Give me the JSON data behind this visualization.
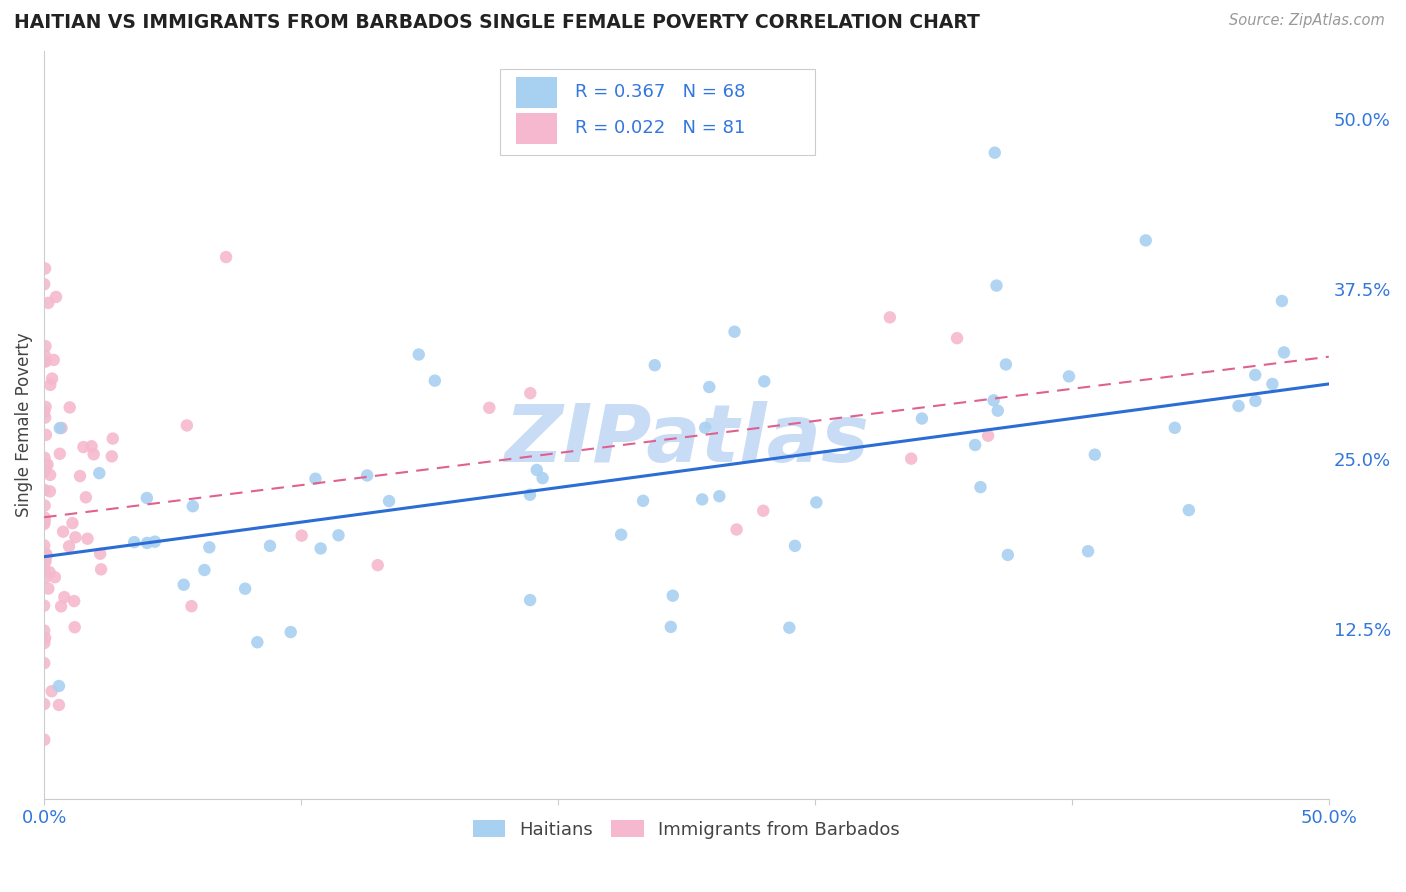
{
  "title": "HAITIAN VS IMMIGRANTS FROM BARBADOS SINGLE FEMALE POVERTY CORRELATION CHART",
  "source": "Source: ZipAtlas.com",
  "ylabel": "Single Female Poverty",
  "xlim": [
    0.0,
    0.5
  ],
  "ylim": [
    0.0,
    0.55
  ],
  "xtick_positions": [
    0.0,
    0.1,
    0.2,
    0.3,
    0.4,
    0.5
  ],
  "xticklabels": [
    "0.0%",
    "",
    "",
    "",
    "",
    "50.0%"
  ],
  "ytick_right_positions": [
    0.125,
    0.25,
    0.375,
    0.5
  ],
  "ytick_right_labels": [
    "12.5%",
    "25.0%",
    "37.5%",
    "50.0%"
  ],
  "legend_labels": [
    "Haitians",
    "Immigrants from Barbados"
  ],
  "blue_color": "#a8d0f0",
  "pink_color": "#f5b8ce",
  "blue_line_color": "#2b6dd4",
  "pink_line_color": "#e06090",
  "r_blue": 0.367,
  "n_blue": 68,
  "r_pink": 0.022,
  "n_pink": 81,
  "watermark_text": "ZIPatlas",
  "watermark_color": "#c8ddf5",
  "background_color": "#ffffff",
  "grid_color": "#e8e8e8",
  "title_color": "#222222",
  "axis_label_color": "#444444",
  "tick_label_color": "#3377dd",
  "marker_size": 80,
  "blue_line_start_y": 0.178,
  "blue_line_end_y": 0.305,
  "pink_line_start_y": 0.207,
  "pink_line_end_y": 0.325
}
